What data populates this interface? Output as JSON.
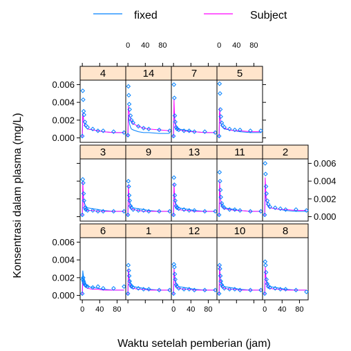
{
  "chart_data": {
    "type": "line",
    "xlabel": "Waktu setelah pemberian (jam)",
    "ylabel": "Konsentrasi dalam plasma (mg/L)",
    "xlim": [
      -5,
      100
    ],
    "ylim": [
      -0.0005,
      0.0065
    ],
    "x_ticks": [
      0,
      40,
      80
    ],
    "x_tick_labels": [
      "0",
      "40",
      "80"
    ],
    "y_ticks": [
      0,
      0.002,
      0.004,
      0.006
    ],
    "y_tick_labels": [
      "0.000",
      "0.002",
      "0.004",
      "0.006"
    ],
    "legend_position": "top",
    "legend": [
      {
        "name": "fixed",
        "color": "#0080ff"
      },
      {
        "name": "Subject",
        "color": "#ff00ff"
      }
    ],
    "observed_color": "#0080ff",
    "strip_color": "#ffe5cc",
    "panels": [
      {
        "id": "4",
        "row": 0,
        "col": 0,
        "obs_x": [
          0,
          1,
          2,
          3,
          4,
          6,
          8,
          12,
          24,
          36,
          48,
          72,
          96
        ],
        "obs_y": [
          0.0002,
          0.0053,
          0.0043,
          0.003,
          0.0026,
          0.0018,
          0.0014,
          0.0012,
          0.001,
          0.0008,
          0.0008,
          0.0007,
          0.0006
        ],
        "fixed_y": [
          0.0001,
          0.0028,
          0.0024,
          0.002,
          0.0017,
          0.0014,
          0.0012,
          0.001,
          0.0009,
          0.0008,
          0.0007,
          0.0006,
          0.0006
        ],
        "subject_y": [
          0.0001,
          0.0028,
          0.0024,
          0.002,
          0.0017,
          0.0014,
          0.0012,
          0.001,
          0.0009,
          0.0008,
          0.0007,
          0.0006,
          0.0006
        ]
      },
      {
        "id": "14",
        "row": 0,
        "col": 1,
        "obs_x": [
          0,
          1,
          2,
          3,
          4,
          6,
          8,
          12,
          24,
          36,
          48,
          72,
          96
        ],
        "obs_y": [
          0.0003,
          0.0058,
          0.0048,
          0.0038,
          0.0032,
          0.0025,
          0.002,
          0.0017,
          0.0013,
          0.0011,
          0.001,
          0.0009,
          0.0008
        ],
        "fixed_y": [
          0.0001,
          0.0026,
          0.0022,
          0.0018,
          0.0015,
          0.0012,
          0.001,
          0.0009,
          0.0007,
          0.0006,
          0.0006,
          0.0005,
          0.0005
        ],
        "subject_y": [
          0.0001,
          0.0036,
          0.0032,
          0.0028,
          0.0025,
          0.0021,
          0.0019,
          0.0016,
          0.0013,
          0.0011,
          0.001,
          0.0009,
          0.0008
        ]
      },
      {
        "id": "7",
        "row": 0,
        "col": 2,
        "obs_x": [
          0,
          1,
          2,
          3,
          4,
          6,
          8,
          12,
          24,
          36,
          48,
          72,
          96
        ],
        "obs_y": [
          0.0002,
          0.006,
          0.0045,
          0.0025,
          0.0018,
          0.0012,
          0.001,
          0.0009,
          0.0008,
          0.0008,
          0.0007,
          0.0007,
          0.0006
        ],
        "fixed_y": [
          0.0001,
          0.0028,
          0.0024,
          0.002,
          0.0017,
          0.0014,
          0.0012,
          0.001,
          0.0009,
          0.0008,
          0.0007,
          0.0006,
          0.0006
        ],
        "subject_y": [
          0.0001,
          0.0044,
          0.003,
          0.002,
          0.0015,
          0.0011,
          0.001,
          0.0009,
          0.0008,
          0.0007,
          0.0007,
          0.0006,
          0.0006
        ]
      },
      {
        "id": "5",
        "row": 0,
        "col": 3,
        "obs_x": [
          0,
          1,
          2,
          3,
          4,
          6,
          8,
          12,
          24,
          36,
          48,
          72,
          96
        ],
        "obs_y": [
          0.0002,
          0.0061,
          0.005,
          0.0032,
          0.0024,
          0.0017,
          0.0014,
          0.0012,
          0.001,
          0.0009,
          0.0009,
          0.0008,
          0.0008
        ],
        "fixed_y": [
          0.0001,
          0.0028,
          0.0024,
          0.002,
          0.0017,
          0.0014,
          0.0012,
          0.001,
          0.0009,
          0.0008,
          0.0007,
          0.0006,
          0.0006
        ],
        "subject_y": [
          0.0001,
          0.0034,
          0.0028,
          0.0021,
          0.0017,
          0.0013,
          0.0012,
          0.0011,
          0.0009,
          0.0008,
          0.0008,
          0.0007,
          0.0007
        ]
      },
      {
        "id": "3",
        "row": 1,
        "col": 0,
        "obs_x": [
          0,
          1,
          2,
          3,
          4,
          6,
          8,
          12,
          24,
          36,
          48,
          72,
          96
        ],
        "obs_y": [
          0.0002,
          0.0042,
          0.0038,
          0.0026,
          0.0018,
          0.001,
          0.0008,
          0.0007,
          0.0007,
          0.0006,
          0.0006,
          0.0006,
          0.0006
        ],
        "fixed_y": [
          0.0001,
          0.0028,
          0.0024,
          0.002,
          0.0017,
          0.0014,
          0.0012,
          0.001,
          0.0009,
          0.0008,
          0.0007,
          0.0006,
          0.0006
        ],
        "subject_y": [
          0.0001,
          0.004,
          0.0028,
          0.0018,
          0.0012,
          0.0009,
          0.0008,
          0.0007,
          0.0007,
          0.0006,
          0.0006,
          0.0006,
          0.0006
        ]
      },
      {
        "id": "9",
        "row": 1,
        "col": 1,
        "obs_x": [
          0,
          1,
          2,
          3,
          4,
          6,
          8,
          12,
          24,
          36,
          48,
          72,
          96
        ],
        "obs_y": [
          0.0002,
          0.004,
          0.0034,
          0.0024,
          0.0018,
          0.0012,
          0.001,
          0.0008,
          0.0007,
          0.0007,
          0.0006,
          0.0006,
          0.0006
        ],
        "fixed_y": [
          0.0001,
          0.0028,
          0.0024,
          0.002,
          0.0017,
          0.0014,
          0.0012,
          0.001,
          0.0009,
          0.0008,
          0.0007,
          0.0006,
          0.0006
        ],
        "subject_y": [
          0.0001,
          0.0036,
          0.0026,
          0.0018,
          0.0013,
          0.001,
          0.0009,
          0.0008,
          0.0007,
          0.0006,
          0.0006,
          0.0006,
          0.0006
        ]
      },
      {
        "id": "13",
        "row": 1,
        "col": 2,
        "obs_x": [
          0,
          1,
          2,
          3,
          4,
          6,
          8,
          12,
          24,
          36,
          48,
          72,
          96
        ],
        "obs_y": [
          0.0002,
          0.0044,
          0.0036,
          0.0024,
          0.0018,
          0.0012,
          0.001,
          0.0009,
          0.0008,
          0.0007,
          0.0007,
          0.0006,
          0.0006
        ],
        "fixed_y": [
          0.0001,
          0.0028,
          0.0024,
          0.002,
          0.0017,
          0.0014,
          0.0012,
          0.001,
          0.0009,
          0.0008,
          0.0007,
          0.0006,
          0.0006
        ],
        "subject_y": [
          0.0001,
          0.0038,
          0.0027,
          0.0019,
          0.0014,
          0.001,
          0.0009,
          0.0008,
          0.0007,
          0.0007,
          0.0006,
          0.0006,
          0.0006
        ]
      },
      {
        "id": "11",
        "row": 1,
        "col": 3,
        "obs_x": [
          0,
          1,
          2,
          3,
          4,
          6,
          8,
          12,
          24,
          36,
          48,
          72,
          96
        ],
        "obs_y": [
          0.0002,
          0.005,
          0.004,
          0.003,
          0.0022,
          0.0015,
          0.0012,
          0.001,
          0.0008,
          0.0008,
          0.0007,
          0.0006,
          0.0006
        ],
        "fixed_y": [
          0.0001,
          0.0028,
          0.0024,
          0.002,
          0.0017,
          0.0014,
          0.0012,
          0.001,
          0.0009,
          0.0008,
          0.0007,
          0.0006,
          0.0006
        ],
        "subject_y": [
          0.0001,
          0.004,
          0.003,
          0.0022,
          0.0016,
          0.0012,
          0.001,
          0.0009,
          0.0008,
          0.0007,
          0.0007,
          0.0006,
          0.0006
        ]
      },
      {
        "id": "2",
        "row": 1,
        "col": 4,
        "obs_x": [
          0,
          1,
          2,
          3,
          4,
          6,
          8,
          12,
          24,
          36,
          48,
          72,
          96
        ],
        "obs_y": [
          0.0002,
          0.006,
          0.0048,
          0.0034,
          0.0026,
          0.0018,
          0.0014,
          0.0011,
          0.001,
          0.0009,
          0.0008,
          0.0008,
          0.0007
        ],
        "fixed_y": [
          0.0001,
          0.0028,
          0.0024,
          0.002,
          0.0017,
          0.0014,
          0.0012,
          0.001,
          0.0009,
          0.0008,
          0.0007,
          0.0006,
          0.0006
        ],
        "subject_y": [
          0.0001,
          0.0044,
          0.0034,
          0.0024,
          0.0018,
          0.0013,
          0.0011,
          0.001,
          0.0009,
          0.0008,
          0.0008,
          0.0007,
          0.0007
        ]
      },
      {
        "id": "6",
        "row": 2,
        "col": 0,
        "obs_x": [
          0,
          1,
          2,
          3,
          4,
          6,
          8,
          12,
          24,
          36,
          48,
          72,
          96
        ],
        "obs_y": [
          0.0002,
          0.0018,
          0.002,
          0.0016,
          0.0014,
          0.0012,
          0.0011,
          0.001,
          0.0009,
          0.001,
          0.0008,
          0.0008,
          0.001
        ],
        "fixed_y": [
          0.0001,
          0.0028,
          0.0024,
          0.002,
          0.0017,
          0.0014,
          0.0012,
          0.001,
          0.0009,
          0.0008,
          0.0007,
          0.0006,
          0.0006
        ],
        "subject_y": [
          0.0001,
          0.0016,
          0.0015,
          0.0013,
          0.0012,
          0.001,
          0.0009,
          0.0008,
          0.0007,
          0.0007,
          0.0006,
          0.0006,
          0.0006
        ]
      },
      {
        "id": "1",
        "row": 2,
        "col": 1,
        "obs_x": [
          0,
          1,
          2,
          3,
          4,
          6,
          8,
          12,
          24,
          36,
          48,
          72,
          96
        ],
        "obs_y": [
          0.0002,
          0.0034,
          0.0028,
          0.0022,
          0.0016,
          0.0012,
          0.001,
          0.0009,
          0.0008,
          0.0007,
          0.0007,
          0.0006,
          0.0006
        ],
        "fixed_y": [
          0.0001,
          0.0028,
          0.0024,
          0.002,
          0.0017,
          0.0014,
          0.0012,
          0.001,
          0.0009,
          0.0008,
          0.0007,
          0.0006,
          0.0006
        ],
        "subject_y": [
          0.0001,
          0.003,
          0.0024,
          0.0018,
          0.0014,
          0.0011,
          0.0009,
          0.0008,
          0.0007,
          0.0007,
          0.0006,
          0.0006,
          0.0006
        ]
      },
      {
        "id": "12",
        "row": 2,
        "col": 2,
        "obs_x": [
          0,
          1,
          2,
          3,
          4,
          6,
          8,
          12,
          24,
          36,
          48,
          72,
          96
        ],
        "obs_y": [
          0.0002,
          0.0035,
          0.0032,
          0.0024,
          0.0018,
          0.0012,
          0.001,
          0.0008,
          0.0007,
          0.0007,
          0.0006,
          0.0006,
          0.0006
        ],
        "fixed_y": [
          0.0001,
          0.0028,
          0.0024,
          0.002,
          0.0017,
          0.0014,
          0.0012,
          0.001,
          0.0009,
          0.0008,
          0.0007,
          0.0006,
          0.0006
        ],
        "subject_y": [
          0.0001,
          0.003,
          0.0024,
          0.0018,
          0.0014,
          0.0011,
          0.0009,
          0.0008,
          0.0007,
          0.0007,
          0.0006,
          0.0006,
          0.0006
        ]
      },
      {
        "id": "10",
        "row": 2,
        "col": 3,
        "obs_x": [
          0,
          1,
          2,
          3,
          4,
          6,
          8,
          12,
          24,
          36,
          48,
          72,
          96
        ],
        "obs_y": [
          0.0002,
          0.0034,
          0.003,
          0.0022,
          0.0016,
          0.0012,
          0.001,
          0.0008,
          0.0007,
          0.0007,
          0.0006,
          0.0006,
          0.0006
        ],
        "fixed_y": [
          0.0001,
          0.0028,
          0.0024,
          0.002,
          0.0017,
          0.0014,
          0.0012,
          0.001,
          0.0009,
          0.0008,
          0.0007,
          0.0006,
          0.0006
        ],
        "subject_y": [
          0.0001,
          0.0034,
          0.0026,
          0.0019,
          0.0014,
          0.0011,
          0.0009,
          0.0008,
          0.0007,
          0.0007,
          0.0006,
          0.0006,
          0.0006
        ]
      },
      {
        "id": "8",
        "row": 2,
        "col": 4,
        "obs_x": [
          0,
          1,
          2,
          3,
          4,
          6,
          8,
          12,
          24,
          36,
          48,
          72,
          96
        ],
        "obs_y": [
          0.0002,
          0.0038,
          0.0034,
          0.0026,
          0.0018,
          0.0013,
          0.001,
          0.0009,
          0.0008,
          0.0007,
          0.0007,
          0.0006,
          0.0004
        ],
        "fixed_y": [
          0.0001,
          0.0028,
          0.0024,
          0.002,
          0.0017,
          0.0014,
          0.0012,
          0.001,
          0.0009,
          0.0008,
          0.0007,
          0.0006,
          0.0006
        ],
        "subject_y": [
          0.0001,
          0.0032,
          0.0026,
          0.0019,
          0.0014,
          0.0011,
          0.0009,
          0.0008,
          0.0007,
          0.0007,
          0.0006,
          0.0006,
          0.0006
        ]
      }
    ]
  }
}
